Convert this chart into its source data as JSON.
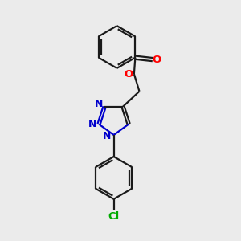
{
  "bg_color": "#ebebeb",
  "bond_color": "#1a1a1a",
  "nitrogen_color": "#0000cc",
  "oxygen_color": "#ff0000",
  "chlorine_color": "#00aa00",
  "line_width": 1.6,
  "figsize": [
    3.0,
    3.0
  ],
  "dpi": 100,
  "xlim": [
    0,
    10
  ],
  "ylim": [
    0,
    10
  ]
}
